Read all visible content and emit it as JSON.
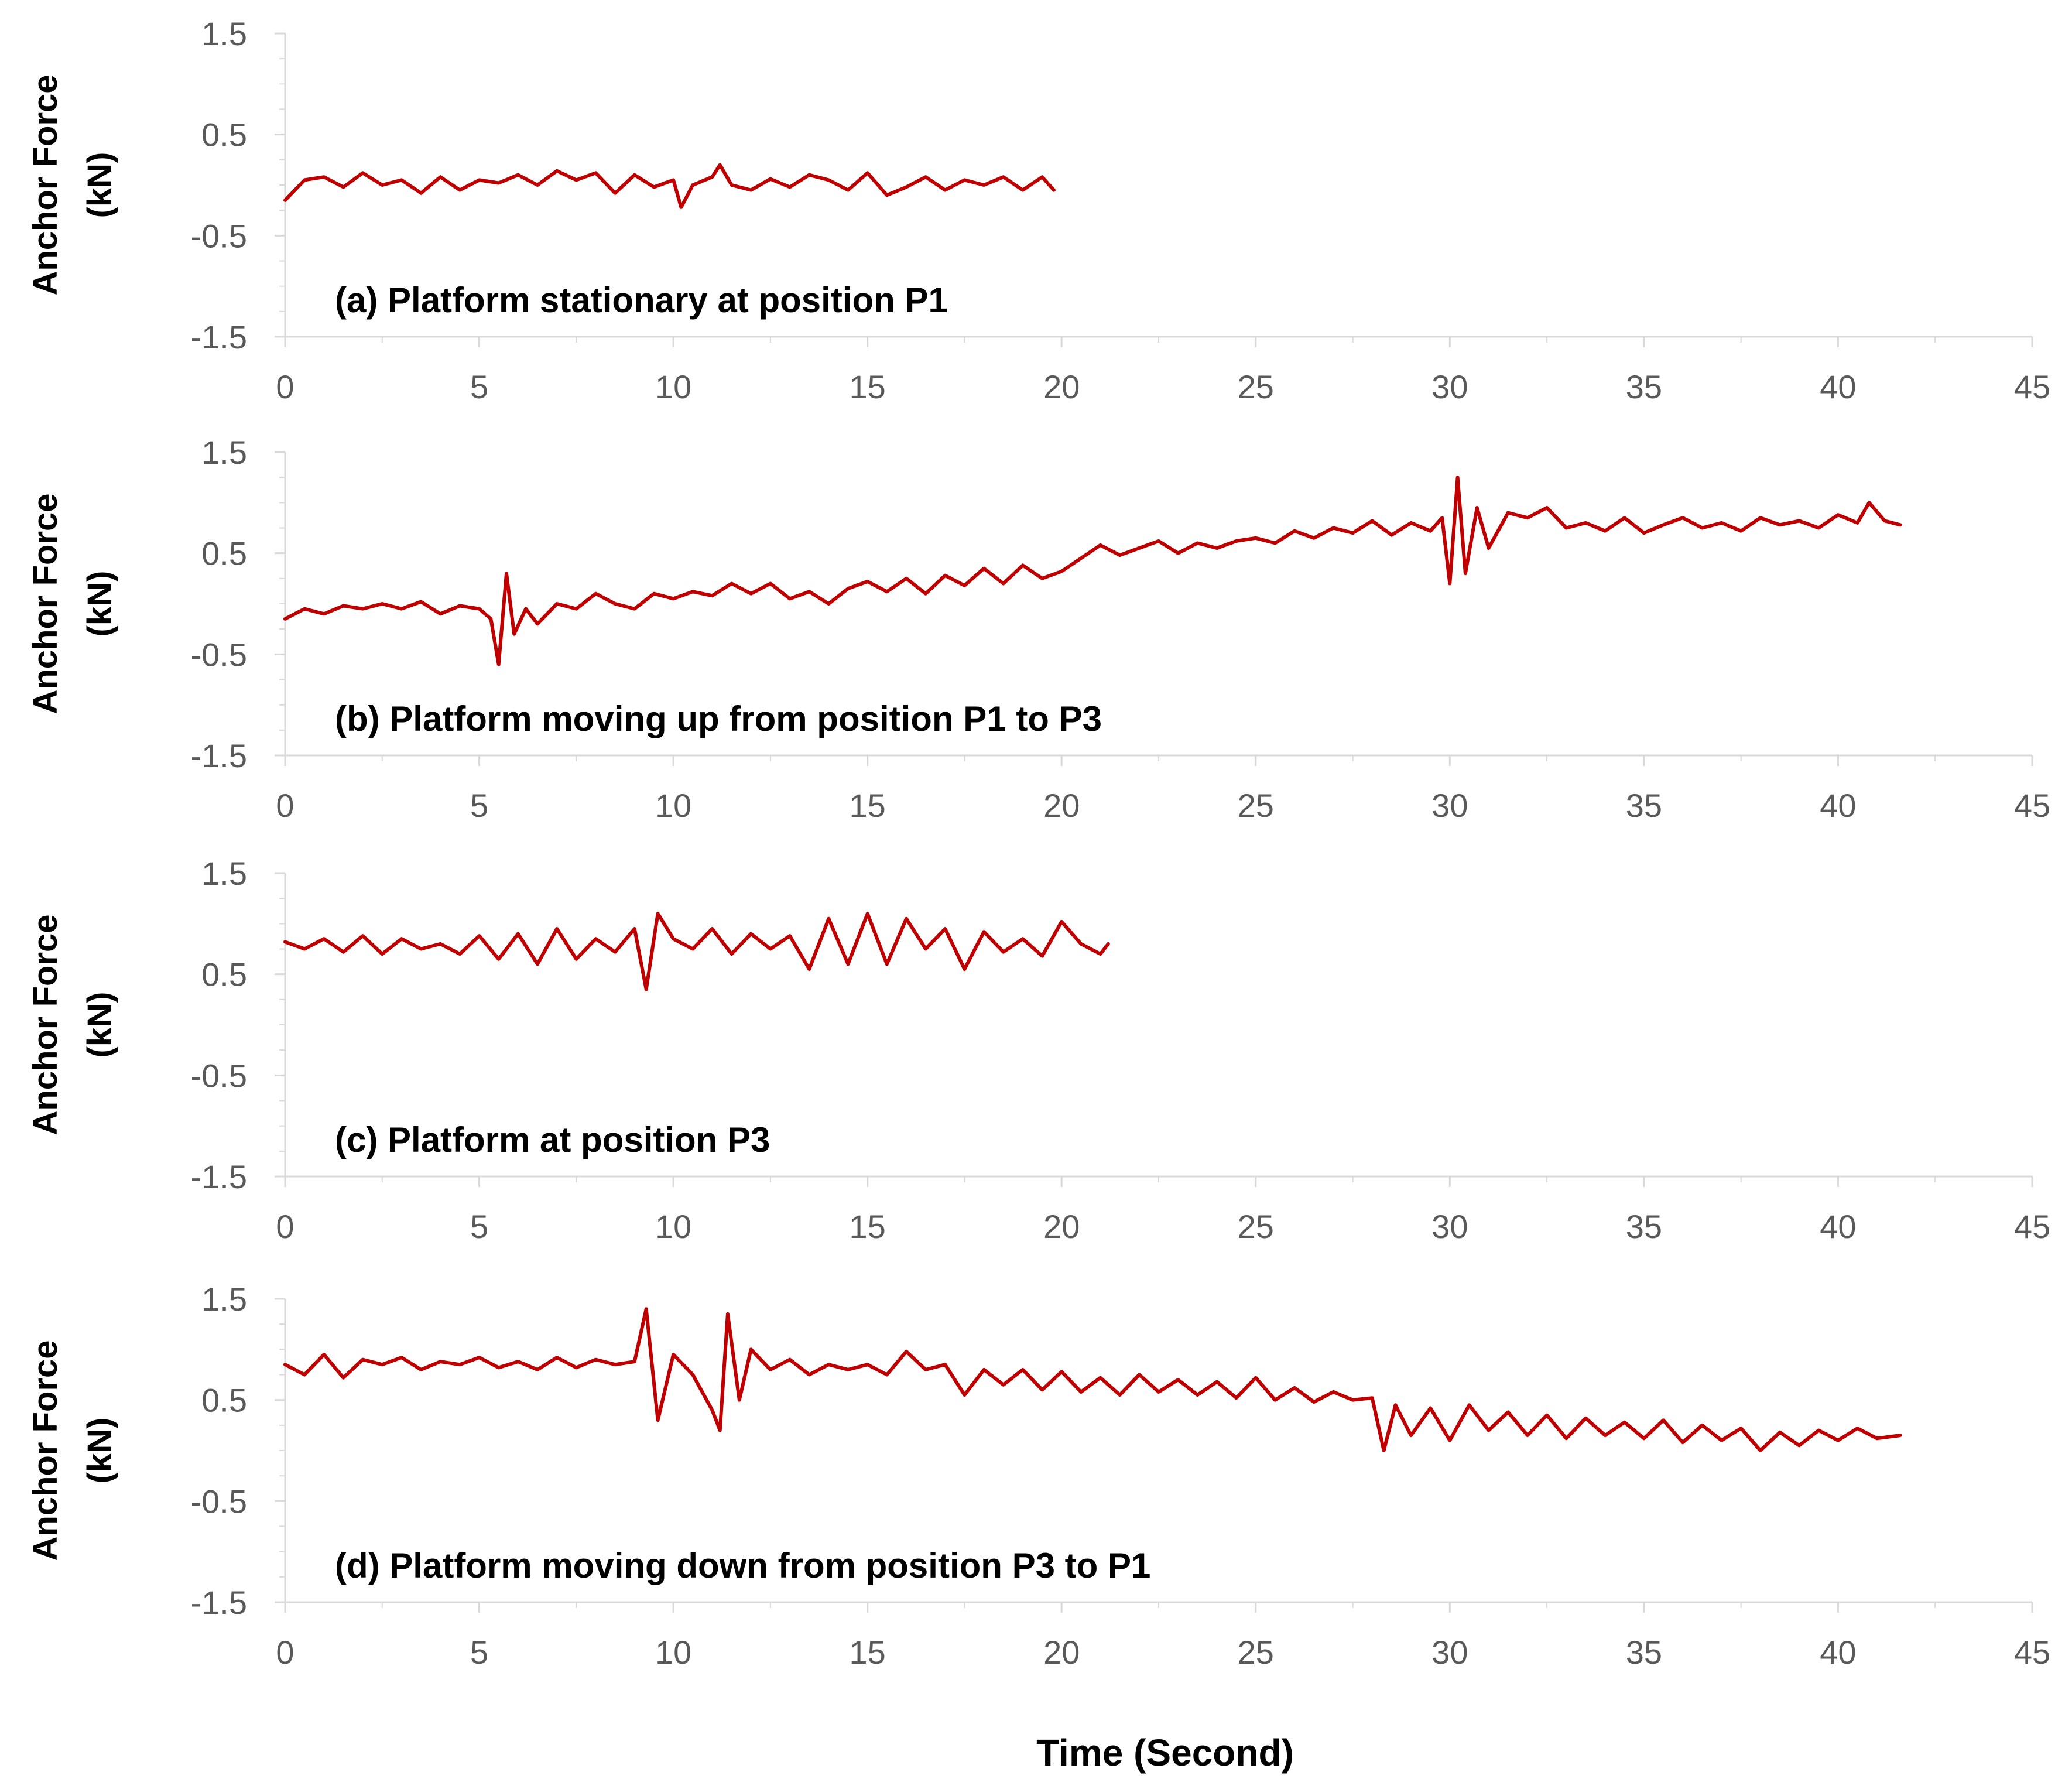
{
  "figure": {
    "x_title": "Time  (Second)",
    "line_color": "#c00000",
    "axis_color": "#d9d9d9",
    "tick_color": "#595959"
  },
  "chart_data": [
    {
      "type": "line",
      "annotation": "(a) Platform stationary at position P1",
      "ylabel_line1": "Anchor Force",
      "ylabel_line2": "(kN)",
      "xlim": [
        0,
        45
      ],
      "ylim": [
        -1.5,
        1.5
      ],
      "x_ticks": [
        "0",
        "5",
        "10",
        "15",
        "20",
        "25",
        "30",
        "35",
        "40",
        "45"
      ],
      "y_ticks": [
        "1.5",
        "0.5",
        "-0.5",
        "-1.5"
      ],
      "grid": false,
      "series": [
        {
          "x": [
            0,
            0.5,
            1,
            1.5,
            2,
            2.5,
            3,
            3.5,
            4,
            4.5,
            5,
            5.5,
            6,
            6.5,
            7,
            7.5,
            8,
            8.5,
            9,
            9.5,
            10,
            10.2,
            10.5,
            11,
            11.2,
            11.5,
            12,
            12.5,
            13,
            13.5,
            14,
            14.5,
            15,
            15.5,
            16,
            16.5,
            17,
            17.5,
            18,
            18.5,
            19,
            19.5,
            19.8
          ],
          "y": [
            -0.15,
            0.05,
            0.08,
            -0.02,
            0.12,
            0.0,
            0.05,
            -0.08,
            0.08,
            -0.05,
            0.05,
            0.02,
            0.1,
            0.0,
            0.14,
            0.05,
            0.12,
            -0.08,
            0.1,
            -0.02,
            0.05,
            -0.22,
            0.0,
            0.08,
            0.2,
            0.0,
            -0.05,
            0.06,
            -0.02,
            0.1,
            0.05,
            -0.05,
            0.12,
            -0.1,
            -0.02,
            0.08,
            -0.05,
            0.05,
            0.0,
            0.08,
            -0.05,
            0.08,
            -0.05
          ]
        }
      ]
    },
    {
      "type": "line",
      "annotation": "(b) Platform moving up from position P1 to P3",
      "ylabel_line1": "Anchor Force",
      "ylabel_line2": "(kN)",
      "xlim": [
        0,
        45
      ],
      "ylim": [
        -1.5,
        1.5
      ],
      "x_ticks": [
        "0",
        "5",
        "10",
        "15",
        "20",
        "25",
        "30",
        "35",
        "40",
        "45"
      ],
      "y_ticks": [
        "1.5",
        "0.5",
        "-0.5",
        "-1.5"
      ],
      "grid": false,
      "series": [
        {
          "x": [
            0,
            0.5,
            1,
            1.5,
            2,
            2.5,
            3,
            3.5,
            4,
            4.5,
            5,
            5.3,
            5.5,
            5.7,
            5.9,
            6.2,
            6.5,
            7,
            7.5,
            8,
            8.5,
            9,
            9.5,
            10,
            10.5,
            11,
            11.5,
            12,
            12.5,
            13,
            13.5,
            14,
            14.5,
            15,
            15.5,
            16,
            16.5,
            17,
            17.5,
            18,
            18.5,
            19,
            19.5,
            20,
            20.5,
            21,
            21.5,
            22,
            22.5,
            23,
            23.5,
            24,
            24.5,
            25,
            25.5,
            26,
            26.5,
            27,
            27.5,
            28,
            28.5,
            29,
            29.5,
            29.8,
            30,
            30.2,
            30.4,
            30.7,
            31,
            31.5,
            32,
            32.5,
            33,
            33.5,
            34,
            34.5,
            35,
            35.5,
            36,
            36.5,
            37,
            37.5,
            38,
            38.5,
            39,
            39.5,
            40,
            40.5,
            40.8,
            41.2,
            41.6
          ],
          "y": [
            -0.15,
            -0.05,
            -0.1,
            -0.02,
            -0.05,
            0.0,
            -0.05,
            0.02,
            -0.1,
            -0.02,
            -0.05,
            -0.15,
            -0.6,
            0.3,
            -0.3,
            -0.05,
            -0.2,
            0.0,
            -0.05,
            0.1,
            0.0,
            -0.05,
            0.1,
            0.05,
            0.12,
            0.08,
            0.2,
            0.1,
            0.2,
            0.05,
            0.12,
            0.0,
            0.15,
            0.22,
            0.12,
            0.25,
            0.1,
            0.28,
            0.18,
            0.35,
            0.2,
            0.38,
            0.25,
            0.32,
            0.45,
            0.58,
            0.48,
            0.55,
            0.62,
            0.5,
            0.6,
            0.55,
            0.62,
            0.65,
            0.6,
            0.72,
            0.65,
            0.75,
            0.7,
            0.82,
            0.68,
            0.8,
            0.72,
            0.85,
            0.2,
            1.25,
            0.3,
            0.95,
            0.55,
            0.9,
            0.85,
            0.95,
            0.75,
            0.8,
            0.72,
            0.85,
            0.7,
            0.78,
            0.85,
            0.75,
            0.8,
            0.72,
            0.85,
            0.78,
            0.82,
            0.75,
            0.88,
            0.8,
            1.0,
            0.82,
            0.78
          ]
        }
      ]
    },
    {
      "type": "line",
      "annotation": "(c) Platform at position P3",
      "ylabel_line1": "Anchor Force",
      "ylabel_line2": "(kN)",
      "xlim": [
        0,
        45
      ],
      "ylim": [
        -1.5,
        1.5
      ],
      "x_ticks": [
        "0",
        "5",
        "10",
        "15",
        "20",
        "25",
        "30",
        "35",
        "40",
        "45"
      ],
      "y_ticks": [
        "1.5",
        "0.5",
        "-0.5",
        "-1.5"
      ],
      "grid": false,
      "series": [
        {
          "x": [
            0,
            0.5,
            1,
            1.5,
            2,
            2.5,
            3,
            3.5,
            4,
            4.5,
            5,
            5.5,
            6,
            6.5,
            7,
            7.5,
            8,
            8.5,
            9,
            9.3,
            9.6,
            10,
            10.5,
            11,
            11.5,
            12,
            12.5,
            13,
            13.5,
            14,
            14.5,
            15,
            15.5,
            16,
            16.5,
            17,
            17.5,
            18,
            18.5,
            19,
            19.5,
            20,
            20.5,
            21,
            21.2
          ],
          "y": [
            0.82,
            0.75,
            0.85,
            0.72,
            0.88,
            0.7,
            0.85,
            0.75,
            0.8,
            0.7,
            0.88,
            0.65,
            0.9,
            0.6,
            0.95,
            0.65,
            0.85,
            0.72,
            0.95,
            0.35,
            1.1,
            0.85,
            0.75,
            0.95,
            0.7,
            0.9,
            0.75,
            0.88,
            0.55,
            1.05,
            0.6,
            1.1,
            0.6,
            1.05,
            0.75,
            0.95,
            0.55,
            0.92,
            0.72,
            0.85,
            0.68,
            1.02,
            0.8,
            0.7,
            0.8
          ]
        }
      ]
    },
    {
      "type": "line",
      "annotation": "(d) Platform moving down from position P3 to P1",
      "ylabel_line1": "Anchor Force",
      "ylabel_line2": "(kN)",
      "xlim": [
        0,
        45
      ],
      "ylim": [
        -1.5,
        1.5
      ],
      "x_ticks": [
        "0",
        "5",
        "10",
        "15",
        "20",
        "25",
        "30",
        "35",
        "40",
        "45"
      ],
      "y_ticks": [
        "1.5",
        "0.5",
        "-0.5",
        "-1.5"
      ],
      "grid": false,
      "series": [
        {
          "x": [
            0,
            0.5,
            1,
            1.5,
            2,
            2.5,
            3,
            3.5,
            4,
            4.5,
            5,
            5.5,
            6,
            6.5,
            7,
            7.5,
            8,
            8.5,
            9,
            9.3,
            9.6,
            10,
            10.5,
            11,
            11.2,
            11.4,
            11.7,
            12,
            12.5,
            13,
            13.5,
            14,
            14.5,
            15,
            15.5,
            16,
            16.5,
            17,
            17.5,
            18,
            18.5,
            19,
            19.5,
            20,
            20.5,
            21,
            21.5,
            22,
            22.5,
            23,
            23.5,
            24,
            24.5,
            25,
            25.5,
            26,
            26.5,
            27,
            27.5,
            28,
            28.3,
            28.6,
            29,
            29.5,
            30,
            30.5,
            31,
            31.5,
            32,
            32.5,
            33,
            33.5,
            34,
            34.5,
            35,
            35.5,
            36,
            36.5,
            37,
            37.5,
            38,
            38.5,
            39,
            39.5,
            40,
            40.5,
            41,
            41.6
          ],
          "y": [
            0.85,
            0.75,
            0.95,
            0.72,
            0.9,
            0.85,
            0.92,
            0.8,
            0.88,
            0.85,
            0.92,
            0.82,
            0.88,
            0.8,
            0.92,
            0.82,
            0.9,
            0.85,
            0.88,
            1.4,
            0.3,
            0.95,
            0.75,
            0.4,
            0.2,
            1.35,
            0.5,
            1.0,
            0.8,
            0.9,
            0.75,
            0.85,
            0.8,
            0.85,
            0.75,
            0.98,
            0.8,
            0.85,
            0.55,
            0.8,
            0.65,
            0.8,
            0.6,
            0.78,
            0.58,
            0.72,
            0.55,
            0.75,
            0.58,
            0.7,
            0.55,
            0.68,
            0.52,
            0.72,
            0.5,
            0.62,
            0.48,
            0.58,
            0.5,
            0.52,
            0.0,
            0.45,
            0.15,
            0.42,
            0.1,
            0.45,
            0.2,
            0.38,
            0.15,
            0.35,
            0.12,
            0.32,
            0.15,
            0.28,
            0.12,
            0.3,
            0.08,
            0.25,
            0.1,
            0.22,
            0.0,
            0.18,
            0.05,
            0.2,
            0.1,
            0.22,
            0.12,
            0.15
          ]
        }
      ]
    }
  ]
}
